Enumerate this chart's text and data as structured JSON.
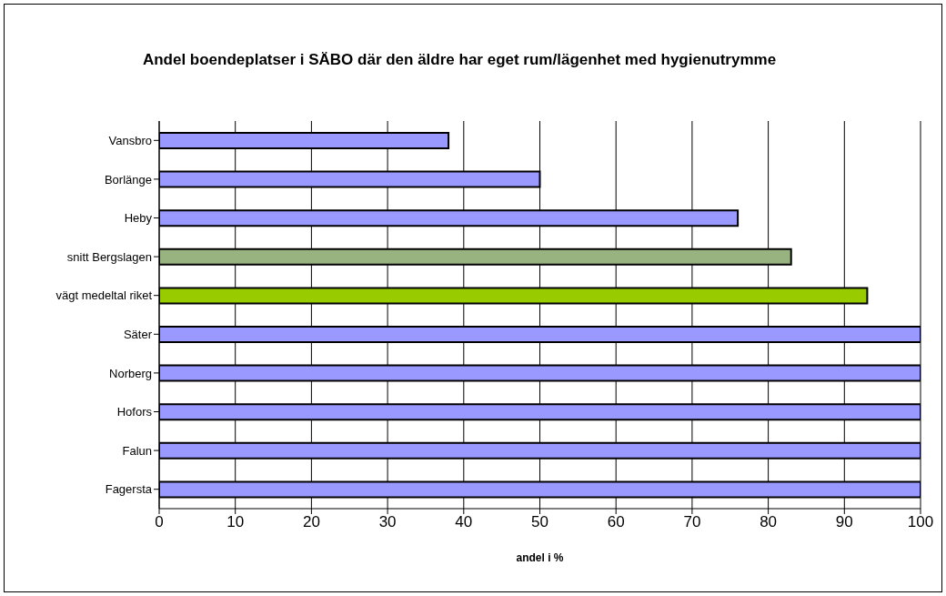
{
  "chart_data": {
    "type": "bar",
    "orientation": "horizontal",
    "title": "Andel boendeplatser i SÄBO där den äldre har eget rum/lägenhet med hygienutrymme",
    "xlabel": "andel i %",
    "categories": [
      "Vansbro",
      "Borlänge",
      "Heby",
      "snitt Bergslagen",
      "vägt medeltal riket",
      "Säter",
      "Norberg",
      "Hofors",
      "Falun",
      "Fagersta"
    ],
    "values": [
      38,
      50,
      76,
      83,
      93,
      100,
      100,
      100,
      100,
      100
    ],
    "colors": [
      "#9999ff",
      "#9999ff",
      "#9999ff",
      "#99b380",
      "#99cc00",
      "#9999ff",
      "#9999ff",
      "#9999ff",
      "#9999ff",
      "#9999ff"
    ],
    "xlim": [
      0,
      100
    ],
    "xticks": [
      0,
      10,
      20,
      30,
      40,
      50,
      60,
      70,
      80,
      90,
      100
    ],
    "grid": "x",
    "legend": false
  }
}
